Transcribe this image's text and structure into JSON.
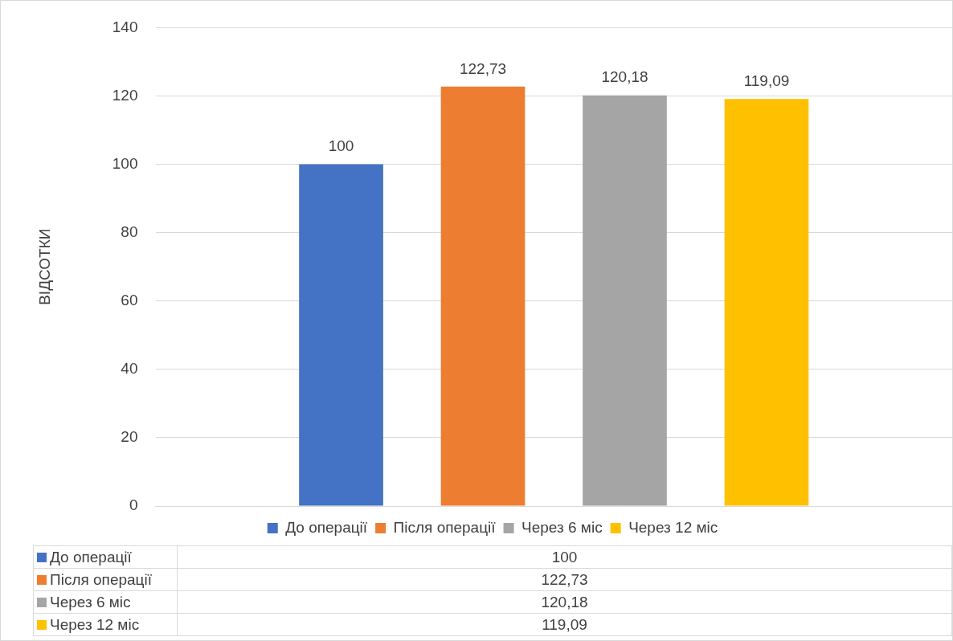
{
  "chart_data": {
    "type": "bar",
    "ylabel": "ВІДСОТКИ",
    "categories": [
      null
    ],
    "series": [
      {
        "name": "До операції",
        "color": "#4472c4",
        "values": [
          100
        ],
        "value_labels": [
          "100"
        ]
      },
      {
        "name": "Після операції",
        "color": "#ed7d31",
        "values": [
          122.73
        ],
        "value_labels": [
          "122,73"
        ]
      },
      {
        "name": "Через 6 міс",
        "color": "#a5a5a5",
        "values": [
          120.18
        ],
        "value_labels": [
          "120,18"
        ]
      },
      {
        "name": "Через 12 міс",
        "color": "#ffc000",
        "values": [
          119.09
        ],
        "value_labels": [
          "119,09"
        ]
      }
    ],
    "ylim": [
      0,
      140
    ],
    "yticks": [
      0,
      20,
      40,
      60,
      80,
      100,
      120,
      140
    ],
    "grid": "y",
    "legend": "bottom"
  }
}
